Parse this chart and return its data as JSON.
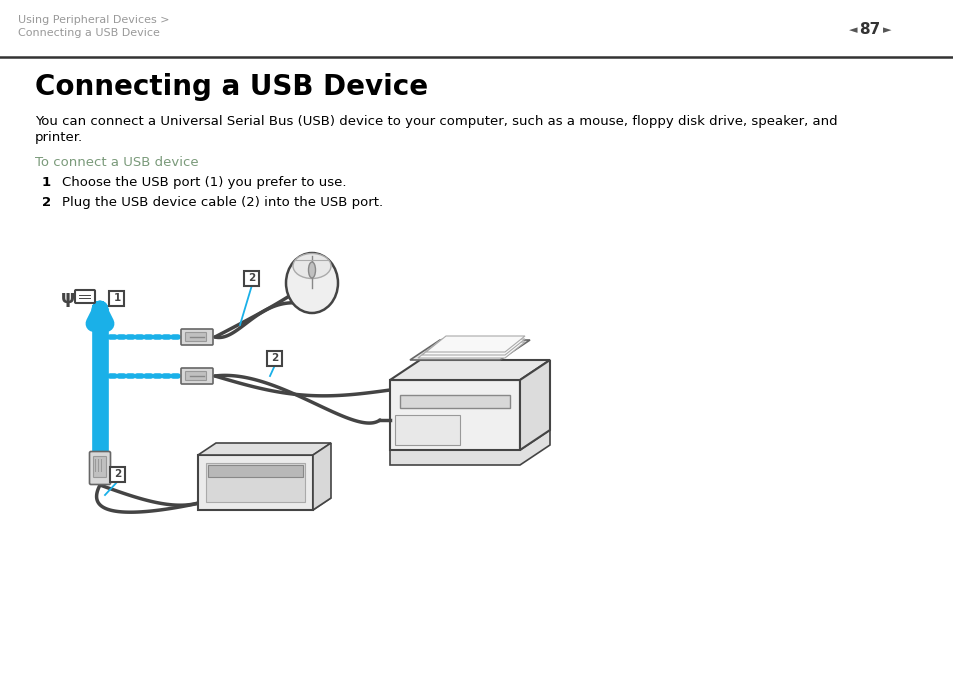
{
  "bg_color": "#ffffff",
  "breadcrumb1": "Using Peripheral Devices >",
  "breadcrumb2": "Connecting a USB Device",
  "page_number": "87",
  "title": "Connecting a USB Device",
  "body1": "You can connect a Universal Serial Bus (USB) device to your computer, such as a mouse, floppy disk drive, speaker, and",
  "body2": "printer.",
  "subhead": "To connect a USB device",
  "step1_num": "1",
  "step1_text": "Choose the USB port (1) you prefer to use.",
  "step2_num": "2",
  "step2_text": "Plug the USB device cable (2) into the USB port.",
  "text_color": "#000000",
  "breadcrumb_color": "#999999",
  "subhead_color": "#7a9a7a",
  "blue_color": "#1ab0e8",
  "dark": "#222222",
  "mid": "#666666",
  "light": "#cccccc",
  "diagram_fill": "#f2f2f2",
  "diagram_stroke": "#444444"
}
